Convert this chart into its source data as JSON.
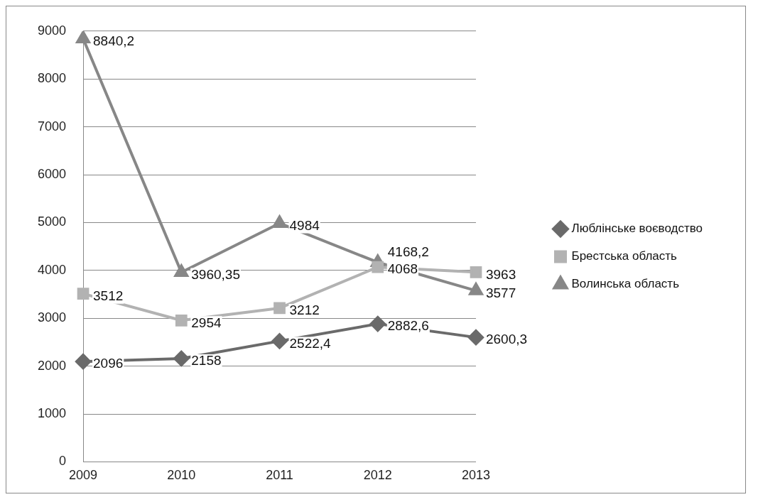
{
  "chart_data": {
    "type": "line",
    "categories": [
      "2009",
      "2010",
      "2011",
      "2012",
      "2013"
    ],
    "series": [
      {
        "name": "Люблінське воєводство",
        "color": "#6a6a6a",
        "marker": "diamond",
        "values": [
          2096,
          2158,
          2522.4,
          2882.6,
          2600.3
        ],
        "value_labels": [
          "2096",
          "2158",
          "2522,4",
          "2882,6",
          "2600,3"
        ]
      },
      {
        "name": "Брестська область",
        "color": "#b2b2b2",
        "marker": "square",
        "values": [
          3512,
          2954,
          3212,
          4068,
          3963
        ],
        "value_labels": [
          "3512",
          "2954",
          "3212",
          "4068",
          "3963"
        ]
      },
      {
        "name": "Волинська область",
        "color": "#878787",
        "marker": "triangle",
        "values": [
          8840.2,
          3960.35,
          4984,
          4168.2,
          3577
        ],
        "value_labels": [
          "8840,2",
          "3960,35",
          "4984",
          "4168,2",
          "3577"
        ]
      }
    ],
    "ylim": [
      0,
      9000
    ],
    "yticks": [
      0,
      1000,
      2000,
      3000,
      4000,
      5000,
      6000,
      7000,
      8000,
      9000
    ],
    "grid": "y",
    "legend": "right",
    "line_style": "solid"
  }
}
